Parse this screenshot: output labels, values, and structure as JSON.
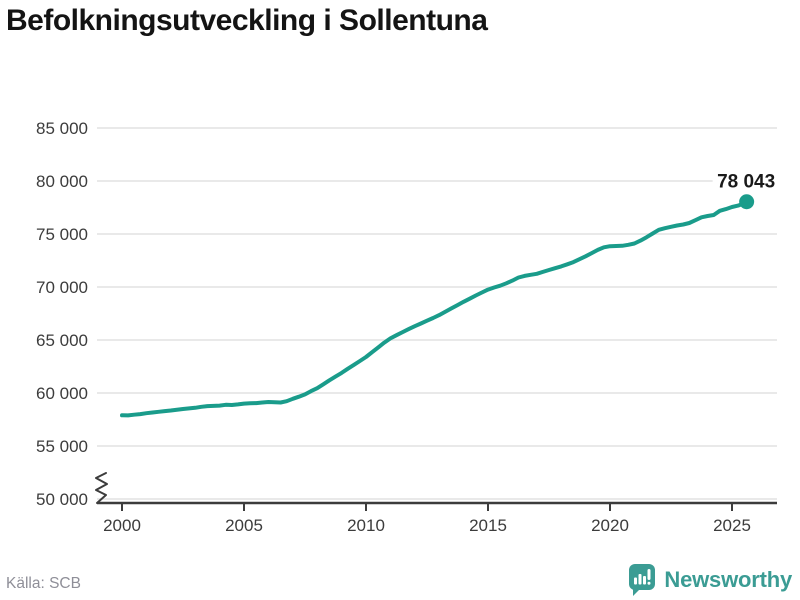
{
  "header": {
    "title": "Befolkningsutveckling i Sollentuna"
  },
  "footer": {
    "source": "Källa: SCB",
    "brand": "Newsworthy"
  },
  "colors": {
    "line": "#1a9c8b",
    "title": "#141414",
    "tick_text": "#3c3c3c",
    "grid": "#e2e2e2",
    "axis": "#3c3c3c",
    "annotation": "#1a1a1a",
    "source_text": "#8f8f98",
    "brand_teal": "#3b9c94"
  },
  "chart_data": {
    "type": "line",
    "title": "Befolkningsutveckling i Sollentuna",
    "xlabel": "",
    "ylabel": "",
    "grid": "horizontal",
    "axis_break_at_bottom": true,
    "ylim": [
      50000,
      85000
    ],
    "xlim": [
      1999,
      2026.8
    ],
    "y_ticks": [
      50000,
      55000,
      60000,
      65000,
      70000,
      75000,
      80000,
      85000
    ],
    "y_tick_labels": [
      "50 000",
      "55 000",
      "60 000",
      "65 000",
      "70 000",
      "75 000",
      "80 000",
      "85 000"
    ],
    "x_ticks": [
      2000,
      2005,
      2010,
      2015,
      2020,
      2025
    ],
    "x_tick_labels": [
      "2000",
      "2005",
      "2010",
      "2015",
      "2020",
      "2025"
    ],
    "annotation": {
      "text": "78 043",
      "x": 2025.6,
      "y": 78043
    },
    "series": [
      {
        "name": "Befolkning i Sollentuna",
        "points": [
          [
            2000.0,
            57900
          ],
          [
            2000.25,
            57890
          ],
          [
            2000.5,
            57950
          ],
          [
            2000.75,
            58010
          ],
          [
            2001.0,
            58090
          ],
          [
            2001.25,
            58160
          ],
          [
            2001.5,
            58230
          ],
          [
            2001.75,
            58290
          ],
          [
            2002.0,
            58350
          ],
          [
            2002.5,
            58490
          ],
          [
            2003.0,
            58600
          ],
          [
            2003.25,
            58700
          ],
          [
            2003.5,
            58760
          ],
          [
            2003.75,
            58780
          ],
          [
            2004.0,
            58810
          ],
          [
            2004.25,
            58890
          ],
          [
            2004.5,
            58870
          ],
          [
            2004.75,
            58920
          ],
          [
            2005.0,
            59000
          ],
          [
            2005.25,
            59030
          ],
          [
            2005.5,
            59050
          ],
          [
            2005.75,
            59100
          ],
          [
            2006.0,
            59150
          ],
          [
            2006.25,
            59120
          ],
          [
            2006.5,
            59100
          ],
          [
            2006.75,
            59230
          ],
          [
            2007.0,
            59450
          ],
          [
            2007.25,
            59650
          ],
          [
            2007.5,
            59870
          ],
          [
            2007.75,
            60180
          ],
          [
            2008.0,
            60450
          ],
          [
            2008.25,
            60820
          ],
          [
            2008.5,
            61200
          ],
          [
            2008.75,
            61550
          ],
          [
            2009.0,
            61900
          ],
          [
            2009.25,
            62280
          ],
          [
            2009.5,
            62650
          ],
          [
            2009.75,
            63020
          ],
          [
            2010.0,
            63400
          ],
          [
            2010.25,
            63850
          ],
          [
            2010.5,
            64300
          ],
          [
            2010.75,
            64750
          ],
          [
            2011.0,
            65150
          ],
          [
            2011.25,
            65450
          ],
          [
            2011.5,
            65750
          ],
          [
            2011.75,
            66030
          ],
          [
            2012.0,
            66300
          ],
          [
            2012.25,
            66560
          ],
          [
            2012.5,
            66820
          ],
          [
            2012.75,
            67080
          ],
          [
            2013.0,
            67350
          ],
          [
            2013.25,
            67660
          ],
          [
            2013.5,
            67980
          ],
          [
            2013.75,
            68290
          ],
          [
            2014.0,
            68600
          ],
          [
            2014.25,
            68900
          ],
          [
            2014.5,
            69200
          ],
          [
            2014.75,
            69480
          ],
          [
            2015.0,
            69750
          ],
          [
            2015.25,
            69950
          ],
          [
            2015.5,
            70120
          ],
          [
            2015.75,
            70350
          ],
          [
            2016.0,
            70600
          ],
          [
            2016.25,
            70900
          ],
          [
            2016.5,
            71050
          ],
          [
            2016.75,
            71150
          ],
          [
            2017.0,
            71250
          ],
          [
            2017.25,
            71420
          ],
          [
            2017.5,
            71600
          ],
          [
            2017.75,
            71770
          ],
          [
            2018.0,
            71940
          ],
          [
            2018.25,
            72140
          ],
          [
            2018.5,
            72350
          ],
          [
            2018.75,
            72620
          ],
          [
            2019.0,
            72900
          ],
          [
            2019.25,
            73200
          ],
          [
            2019.5,
            73500
          ],
          [
            2019.75,
            73750
          ],
          [
            2020.0,
            73850
          ],
          [
            2020.25,
            73870
          ],
          [
            2020.5,
            73890
          ],
          [
            2020.75,
            73980
          ],
          [
            2021.0,
            74100
          ],
          [
            2021.25,
            74380
          ],
          [
            2021.5,
            74700
          ],
          [
            2021.75,
            75050
          ],
          [
            2022.0,
            75400
          ],
          [
            2022.25,
            75550
          ],
          [
            2022.5,
            75680
          ],
          [
            2022.75,
            75800
          ],
          [
            2023.0,
            75900
          ],
          [
            2023.25,
            76040
          ],
          [
            2023.5,
            76300
          ],
          [
            2023.75,
            76580
          ],
          [
            2024.0,
            76700
          ],
          [
            2024.25,
            76790
          ],
          [
            2024.5,
            77190
          ],
          [
            2024.75,
            77350
          ],
          [
            2025.0,
            77550
          ],
          [
            2025.25,
            77680
          ],
          [
            2025.5,
            77900
          ],
          [
            2025.6,
            78043
          ]
        ]
      }
    ]
  }
}
